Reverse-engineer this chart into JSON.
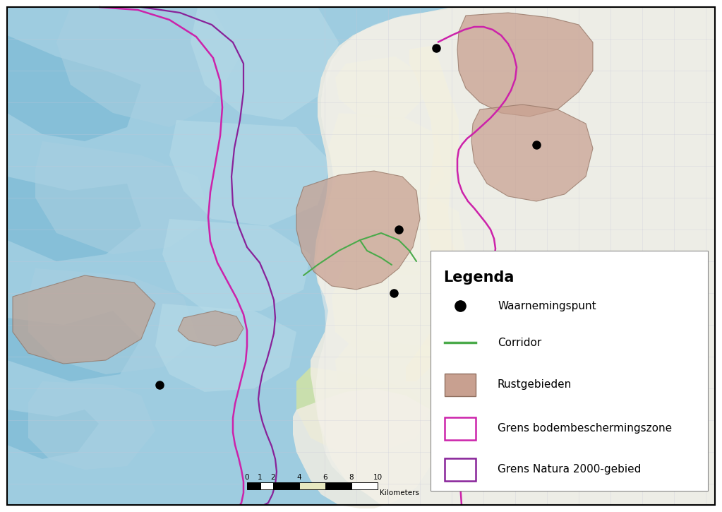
{
  "background_color": "#ffffff",
  "legend_title": "Legenda",
  "legend_items": [
    {
      "label": "Waarnemingspunt",
      "type": "point"
    },
    {
      "label": "Corridor",
      "type": "line",
      "color": "#4aaa4a"
    },
    {
      "label": "Rustgebieden",
      "type": "patch",
      "facecolor": "#c8998a",
      "edgecolor": "#907060"
    },
    {
      "label": "Grens bodembeschermingszone",
      "type": "rect",
      "facecolor": "white",
      "edgecolor": "#cc22aa"
    },
    {
      "label": "Grens Natura 2000-gebied",
      "type": "rect",
      "facecolor": "white",
      "edgecolor": "#882299"
    }
  ],
  "scale_label": "Kilometers",
  "outer_border_color": "#cc22aa",
  "inner_border_color": "#882299",
  "corridor_color": "#4aaa4a",
  "obs_point_color": "#000000",
  "sea_bg_color": "#9ecce0",
  "land_color": "#f0ede0",
  "topo_color": "#e8e4d8"
}
